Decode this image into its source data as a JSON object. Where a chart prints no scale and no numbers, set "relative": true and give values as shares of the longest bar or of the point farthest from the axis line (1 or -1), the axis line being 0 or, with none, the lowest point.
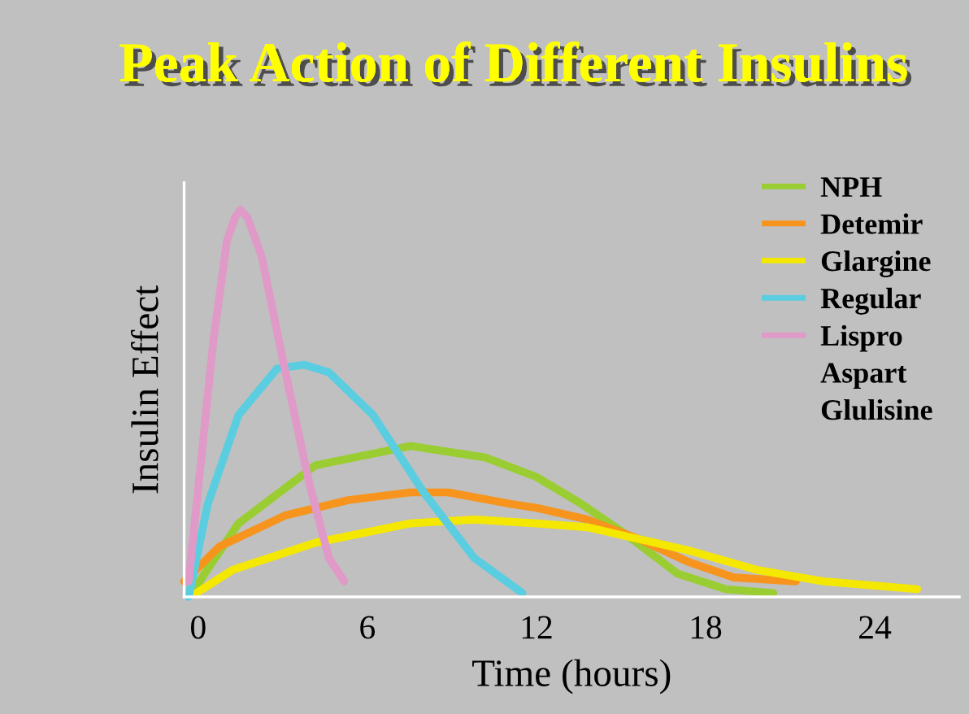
{
  "chart_data": {
    "type": "line",
    "title": "Peak Action of Different Insulins",
    "xlabel": "Time (hours)",
    "ylabel": "Insulin Effect",
    "relative": true,
    "xlim": [
      -0.5,
      27
    ],
    "xticks": [
      0,
      6,
      12,
      18,
      24
    ],
    "grid": false,
    "legend": "top right",
    "marker": "none",
    "line_style": "solid",
    "tick_labels": "x",
    "series": [
      {
        "name": "NPH",
        "color": "#9acd32",
        "x": [
          -0.14,
          1.43,
          4.16,
          7.53,
          10.2,
          12,
          13.6,
          15.2,
          17.0,
          18.7,
          20.4
        ],
        "values": [
          0.02,
          0.19,
          0.34,
          0.39,
          0.36,
          0.31,
          0.24,
          0.16,
          0.06,
          0.02,
          0.01
        ]
      },
      {
        "name": "Detemir",
        "color": "#f7941d",
        "x": [
          -0.5,
          0.75,
          3.07,
          5.32,
          7.53,
          8.87,
          11.1,
          12,
          13.8,
          15.6,
          17.4,
          19.0,
          21.2
        ],
        "values": [
          0.04,
          0.13,
          0.21,
          0.25,
          0.27,
          0.27,
          0.24,
          0.23,
          0.2,
          0.15,
          0.09,
          0.05,
          0.04
        ]
      },
      {
        "name": "Glargine",
        "color": "#f5e800",
        "x": [
          -0.07,
          1.23,
          4.16,
          7.53,
          9.8,
          12,
          13.8,
          15.6,
          17.4,
          19.8,
          22.2,
          25.5
        ],
        "values": [
          0.01,
          0.07,
          0.14,
          0.19,
          0.2,
          0.19,
          0.18,
          0.15,
          0.12,
          0.07,
          0.04,
          0.02
        ]
      },
      {
        "name": "Regular",
        "color": "#5bcde0",
        "x": [
          -0.34,
          0.34,
          1.43,
          2.8,
          3.75,
          4.64,
          6.2,
          8.0,
          9.8,
          11.5
        ],
        "values": [
          0,
          0.24,
          0.47,
          0.59,
          0.6,
          0.58,
          0.47,
          0.27,
          0.1,
          0.01
        ]
      },
      {
        "name": "Lispro",
        "color": "#e09ac8",
        "x": [
          -0.34,
          0.55,
          1.02,
          1.3,
          1.5,
          1.75,
          2.25,
          3.07,
          3.95,
          4.64,
          5.18
        ],
        "values": [
          0.04,
          0.67,
          0.92,
          0.98,
          1.0,
          0.98,
          0.88,
          0.59,
          0.29,
          0.1,
          0.04
        ]
      }
    ],
    "annotations": [
      "Aspart",
      "Glulisine"
    ]
  }
}
